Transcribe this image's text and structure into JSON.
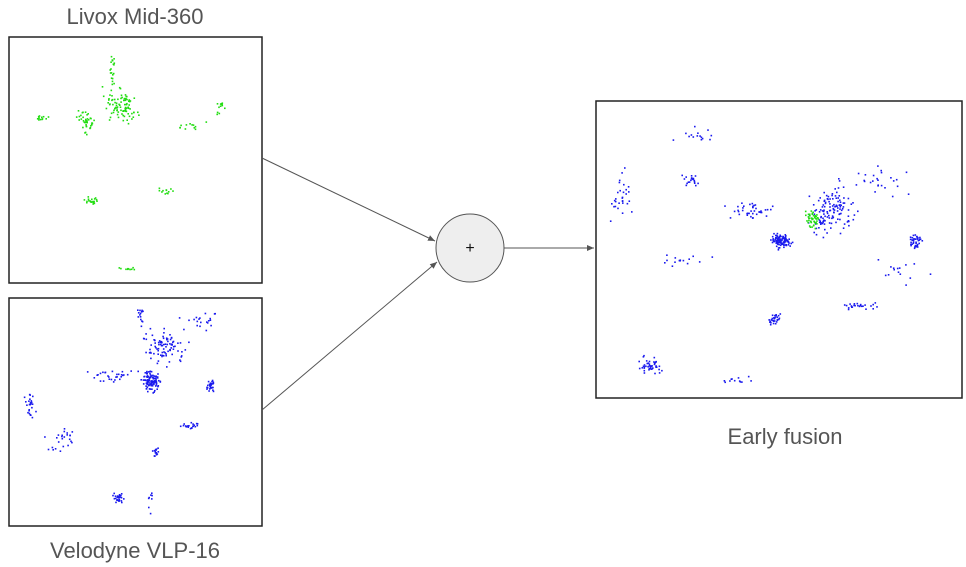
{
  "inputs": [
    {
      "label": "Livox Mid-360"
    },
    {
      "label": "Velodyne VLP-16"
    }
  ],
  "operator": {
    "label": "+"
  },
  "output": {
    "label": "Early fusion"
  }
}
